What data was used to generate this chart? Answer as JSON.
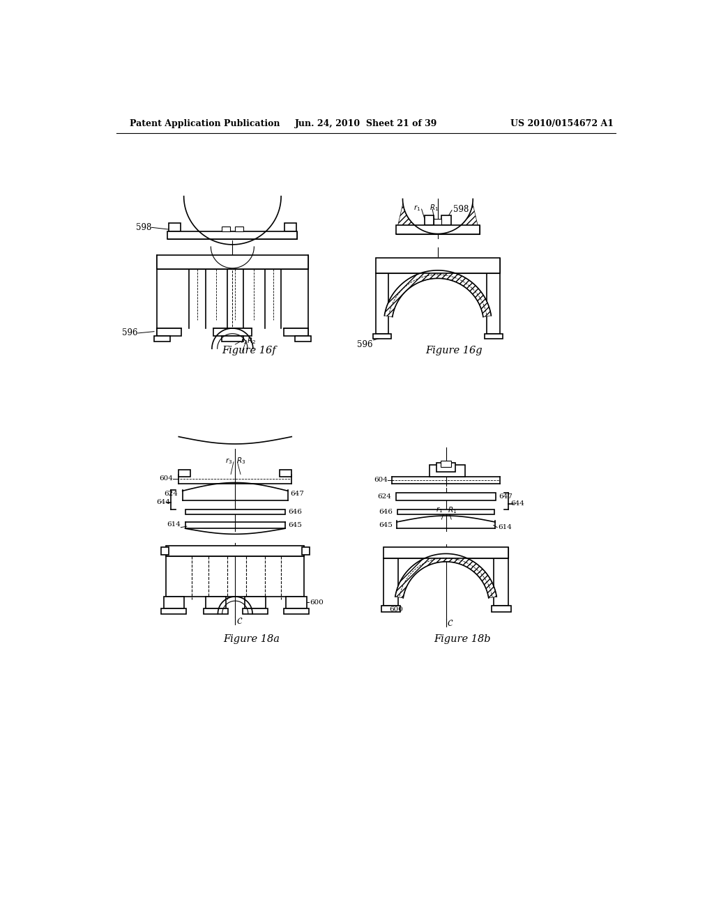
{
  "page_title_left": "Patent Application Publication",
  "page_title_center": "Jun. 24, 2010  Sheet 21 of 39",
  "page_title_right": "US 2010/0154672 A1",
  "fig16f_label": "Figure 16f",
  "fig16g_label": "Figure 16g",
  "fig18a_label": "Figure 18a",
  "fig18b_label": "Figure 18b",
  "background_color": "#ffffff"
}
